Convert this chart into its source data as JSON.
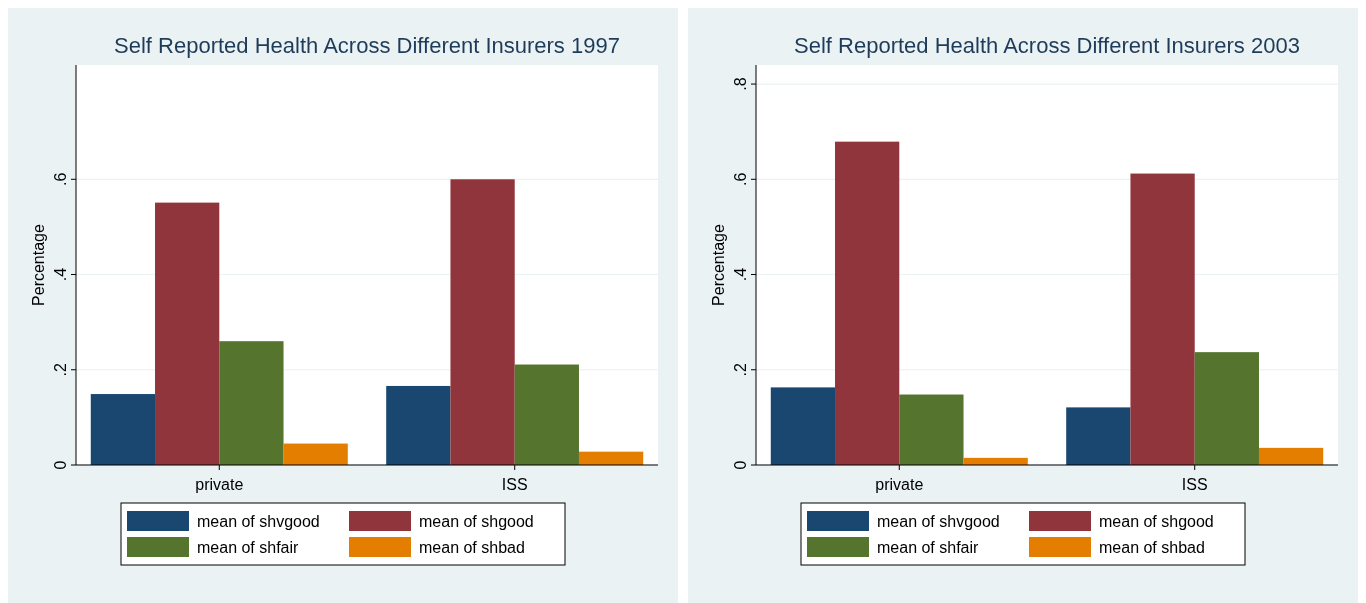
{
  "chart_data": [
    {
      "type": "bar",
      "title": "Self Reported Health Across Different Insurers 1997",
      "ylabel": "Percentage",
      "categories": [
        "private",
        "ISS"
      ],
      "series": [
        {
          "name": "mean of shvgood",
          "color": "#1a476f",
          "values": [
            0.149,
            0.166
          ]
        },
        {
          "name": "mean of shgood",
          "color": "#90353b",
          "values": [
            0.551,
            0.6
          ]
        },
        {
          "name": "mean of shfair",
          "color": "#55752f",
          "values": [
            0.26,
            0.211
          ]
        },
        {
          "name": "mean of shbad",
          "color": "#e37e00",
          "values": [
            0.045,
            0.028
          ]
        }
      ],
      "ylim": [
        0,
        0.84
      ],
      "yticks": [
        0,
        {
          "value": 0.2,
          "label": ".2"
        },
        {
          "value": 0.4,
          "label": ".4"
        },
        {
          "value": 0.6,
          "label": ".6"
        }
      ],
      "grid": "y",
      "legend": "bottom"
    },
    {
      "type": "bar",
      "title": "Self Reported Health Across Different Insurers 2003",
      "ylabel": "Percentage",
      "categories": [
        "private",
        "ISS"
      ],
      "series": [
        {
          "name": "mean of shvgood",
          "color": "#1a476f",
          "values": [
            0.163,
            0.121
          ]
        },
        {
          "name": "mean of shgood",
          "color": "#90353b",
          "values": [
            0.679,
            0.612
          ]
        },
        {
          "name": "mean of shfair",
          "color": "#55752f",
          "values": [
            0.148,
            0.237
          ]
        },
        {
          "name": "mean of shbad",
          "color": "#e37e00",
          "values": [
            0.015,
            0.036
          ]
        }
      ],
      "ylim": [
        0,
        0.84
      ],
      "yticks": [
        0,
        {
          "value": 0.2,
          "label": ".2"
        },
        {
          "value": 0.4,
          "label": ".4"
        },
        {
          "value": 0.6,
          "label": ".6"
        },
        {
          "value": 0.8,
          "label": ".8"
        }
      ],
      "grid": "y",
      "legend": "bottom"
    }
  ]
}
